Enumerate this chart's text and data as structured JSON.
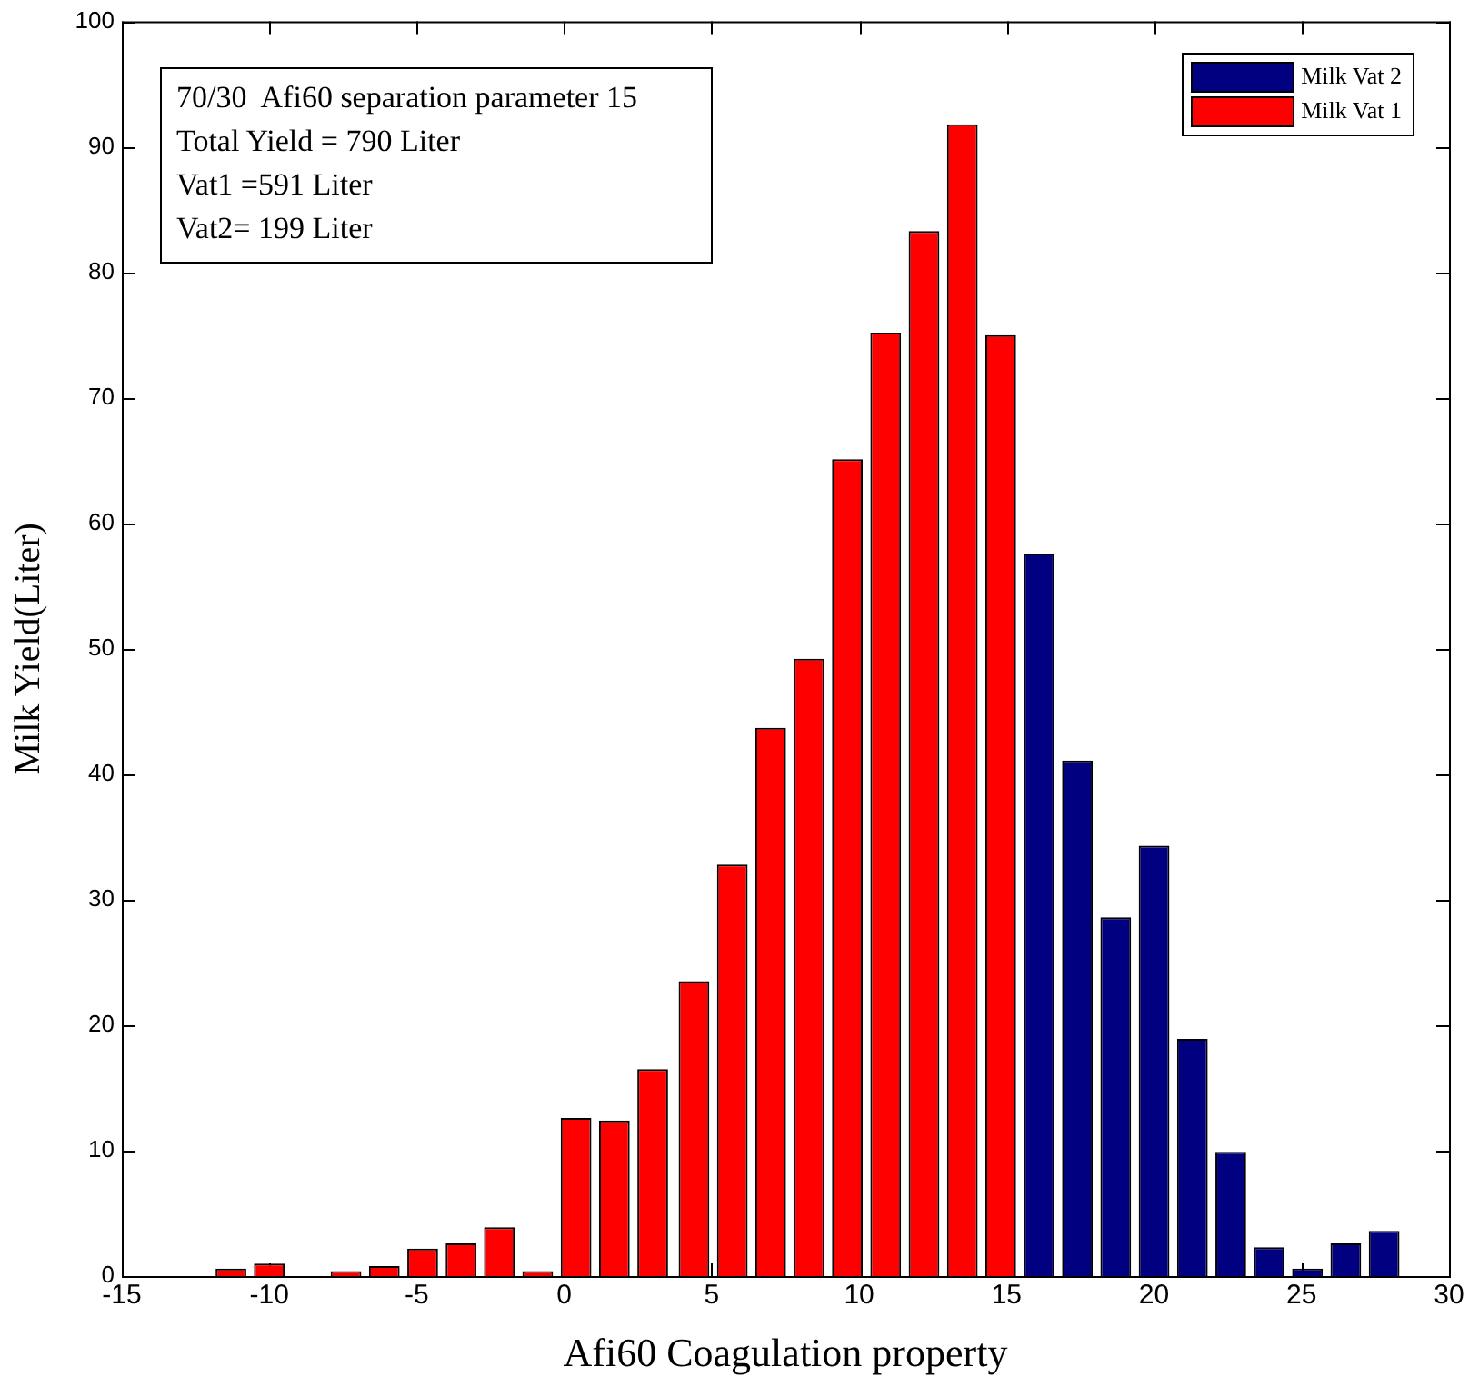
{
  "chart_data": {
    "type": "bar",
    "xlabel": "Afi60 Coagulation property",
    "ylabel": "Milk Yield(Liter)",
    "annotations": [
      "70/30  Afi60 separation parameter 15",
      "Total Yield = 790 Liter",
      "Vat1 =591 Liter",
      "Vat2= 199 Liter"
    ],
    "series": [
      {
        "name": "Milk Vat 2",
        "color": "#000080",
        "x": [
          16.1,
          17.4,
          18.7,
          20.0,
          21.3,
          22.6,
          23.9,
          25.2,
          26.5,
          27.8
        ],
        "values": [
          57.6,
          41.1,
          28.6,
          34.3,
          18.9,
          9.9,
          2.3,
          0.6,
          2.6,
          3.6
        ]
      },
      {
        "name": "Milk Vat 1",
        "color": "#ff0000",
        "x": [
          -11.3,
          -10.0,
          -7.4,
          -6.1,
          -4.8,
          -3.5,
          -2.2,
          -0.9,
          0.4,
          1.7,
          3.0,
          4.4,
          5.7,
          7.0,
          8.3,
          9.6,
          10.9,
          12.2,
          13.5,
          14.8
        ],
        "values": [
          0.6,
          1.0,
          0.4,
          0.8,
          2.2,
          2.6,
          3.9,
          0.4,
          12.6,
          12.4,
          16.5,
          23.5,
          32.8,
          43.7,
          49.2,
          65.1,
          75.2,
          83.3,
          91.8,
          75.0
        ]
      }
    ],
    "xlim": [
      -15,
      30
    ],
    "xticks": [
      -15,
      -10,
      -5,
      0,
      5,
      10,
      15,
      20,
      25,
      30
    ],
    "ylim": [
      0,
      100
    ],
    "yticks": [
      0,
      10,
      20,
      30,
      40,
      50,
      60,
      70,
      80,
      90,
      100
    ],
    "grid": false,
    "legend": "top right"
  }
}
